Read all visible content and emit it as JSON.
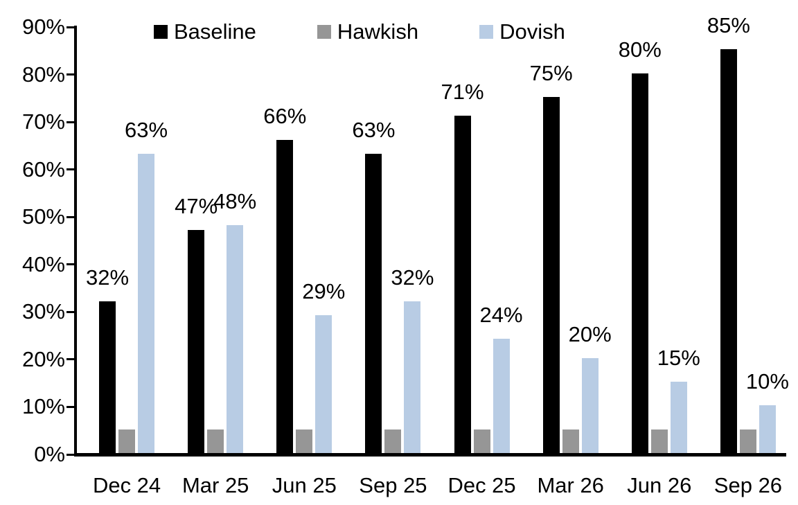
{
  "chart_data": {
    "type": "bar",
    "title": "",
    "xlabel": "",
    "ylabel": "",
    "categories": [
      "Dec 24",
      "Mar 25",
      "Jun 25",
      "Sep 25",
      "Dec 25",
      "Mar 26",
      "Jun 26",
      "Sep 26"
    ],
    "series": [
      {
        "name": "Baseline",
        "color": "#000000",
        "values": [
          32,
          47,
          66,
          63,
          71,
          75,
          80,
          85
        ],
        "data_labels": [
          "32%",
          "47%",
          "66%",
          "63%",
          "71%",
          "75%",
          "80%",
          "85%"
        ]
      },
      {
        "name": "Hawkish",
        "color": "#969696",
        "values": [
          5,
          5,
          5,
          5,
          5,
          5,
          5,
          5
        ],
        "data_labels": []
      },
      {
        "name": "Dovish",
        "color": "#b8cce4",
        "values": [
          63,
          48,
          29,
          32,
          24,
          20,
          15,
          10
        ],
        "data_labels": [
          "63%",
          "48%",
          "29%",
          "32%",
          "24%",
          "20%",
          "15%",
          "10%"
        ]
      }
    ],
    "ylim": [
      0,
      90
    ],
    "yticks": {
      "values": [
        0,
        10,
        20,
        30,
        40,
        50,
        60,
        70,
        80,
        90
      ],
      "labels": [
        "0%",
        "10%",
        "20%",
        "30%",
        "40%",
        "50%",
        "60%",
        "70%",
        "80%",
        "90%"
      ]
    },
    "legend_position": "top",
    "grid": false
  }
}
